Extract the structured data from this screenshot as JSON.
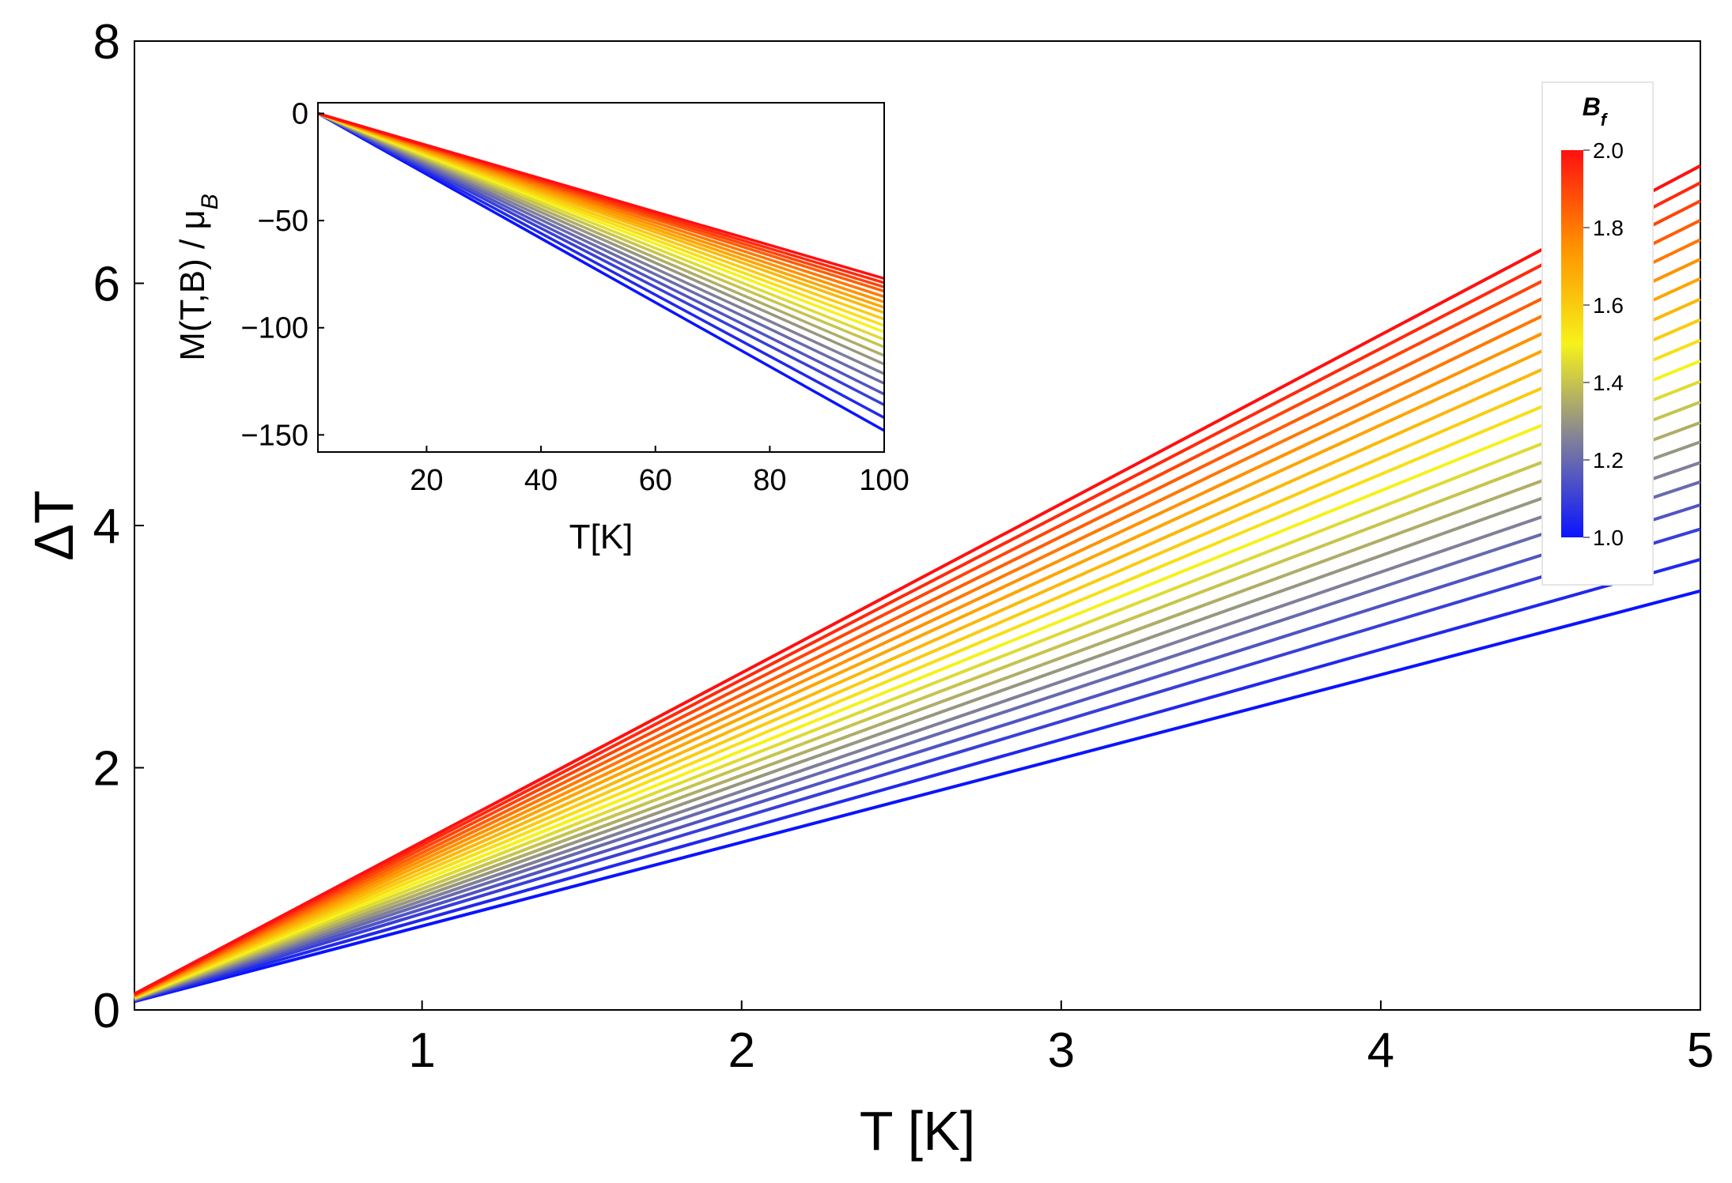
{
  "chart_data": [
    {
      "type": "line",
      "panel": "main",
      "xlabel": "T [K]",
      "ylabel": "ΔT",
      "xlim": [
        0.1,
        5
      ],
      "ylim": [
        0,
        8
      ],
      "x_ticks": [
        "1",
        "2",
        "3",
        "4",
        "5"
      ],
      "y_ticks": [
        "0",
        "2",
        "4",
        "6",
        "8"
      ],
      "x": [
        0.1,
        5
      ],
      "series": [
        {
          "name": "B_f = 1.00",
          "values": [
            0.07,
            3.46
          ]
        },
        {
          "name": "B_f = 1.05",
          "values": [
            0.075,
            3.72
          ]
        },
        {
          "name": "B_f = 1.10",
          "values": [
            0.08,
            3.97
          ]
        },
        {
          "name": "B_f = 1.15",
          "values": [
            0.082,
            4.17
          ]
        },
        {
          "name": "B_f = 1.20",
          "values": [
            0.085,
            4.36
          ]
        },
        {
          "name": "B_f = 1.25",
          "values": [
            0.088,
            4.52
          ]
        },
        {
          "name": "B_f = 1.30",
          "values": [
            0.09,
            4.69
          ]
        },
        {
          "name": "B_f = 1.35",
          "values": [
            0.093,
            4.85
          ]
        },
        {
          "name": "B_f = 1.40",
          "values": [
            0.096,
            5.02
          ]
        },
        {
          "name": "B_f = 1.45",
          "values": [
            0.099,
            5.19
          ]
        },
        {
          "name": "B_f = 1.50",
          "values": [
            0.102,
            5.36
          ]
        },
        {
          "name": "B_f = 1.55",
          "values": [
            0.105,
            5.53
          ]
        },
        {
          "name": "B_f = 1.60",
          "values": [
            0.108,
            5.7
          ]
        },
        {
          "name": "B_f = 1.65",
          "values": [
            0.111,
            5.87
          ]
        },
        {
          "name": "B_f = 1.70",
          "values": [
            0.114,
            6.04
          ]
        },
        {
          "name": "B_f = 1.75",
          "values": [
            0.117,
            6.2
          ]
        },
        {
          "name": "B_f = 1.80",
          "values": [
            0.12,
            6.36
          ]
        },
        {
          "name": "B_f = 1.85",
          "values": [
            0.123,
            6.52
          ]
        },
        {
          "name": "B_f = 1.90",
          "values": [
            0.126,
            6.68
          ]
        },
        {
          "name": "B_f = 1.95",
          "values": [
            0.129,
            6.83
          ]
        },
        {
          "name": "B_f = 2.00",
          "values": [
            0.132,
            6.97
          ]
        }
      ]
    },
    {
      "type": "line",
      "panel": "inset",
      "xlabel": "T[K]",
      "ylabel": "M(T,B) / μ",
      "ylabel_subscript": "B",
      "xlim": [
        1,
        100
      ],
      "ylim": [
        -158,
        5
      ],
      "x_ticks": [
        "20",
        "40",
        "60",
        "80",
        "100"
      ],
      "y_ticks": [
        "0",
        "−50",
        "−100",
        "−150"
      ],
      "x": [
        1,
        100
      ],
      "series": [
        {
          "name": "B_f = 1.00",
          "values": [
            0,
            -148
          ]
        },
        {
          "name": "B_f = 1.05",
          "values": [
            0,
            -142
          ]
        },
        {
          "name": "B_f = 1.10",
          "values": [
            0,
            -136
          ]
        },
        {
          "name": "B_f = 1.15",
          "values": [
            0,
            -131
          ]
        },
        {
          "name": "B_f = 1.20",
          "values": [
            0,
            -126
          ]
        },
        {
          "name": "B_f = 1.25",
          "values": [
            0,
            -121.5
          ]
        },
        {
          "name": "B_f = 1.30",
          "values": [
            0,
            -117
          ]
        },
        {
          "name": "B_f = 1.35",
          "values": [
            0,
            -113
          ]
        },
        {
          "name": "B_f = 1.40",
          "values": [
            0,
            -109
          ]
        },
        {
          "name": "B_f = 1.45",
          "values": [
            0,
            -105.5
          ]
        },
        {
          "name": "B_f = 1.50",
          "values": [
            0,
            -102
          ]
        },
        {
          "name": "B_f = 1.55",
          "values": [
            0,
            -99
          ]
        },
        {
          "name": "B_f = 1.60",
          "values": [
            0,
            -96
          ]
        },
        {
          "name": "B_f = 1.65",
          "values": [
            0,
            -93
          ]
        },
        {
          "name": "B_f = 1.70",
          "values": [
            0,
            -90.5
          ]
        },
        {
          "name": "B_f = 1.75",
          "values": [
            0,
            -88
          ]
        },
        {
          "name": "B_f = 1.80",
          "values": [
            0,
            -85.5
          ]
        },
        {
          "name": "B_f = 1.85",
          "values": [
            0,
            -83
          ]
        },
        {
          "name": "B_f = 1.90",
          "values": [
            0,
            -81
          ]
        },
        {
          "name": "B_f = 1.95",
          "values": [
            0,
            -79
          ]
        },
        {
          "name": "B_f = 2.00",
          "values": [
            0,
            -77
          ]
        }
      ]
    }
  ],
  "colorbar": {
    "title": "B",
    "title_subscript": "f",
    "min": 1.0,
    "max": 2.0,
    "ticks": [
      "1.0",
      "1.2",
      "1.4",
      "1.6",
      "1.8",
      "2.0"
    ],
    "tick_values": [
      1.0,
      1.2,
      1.4,
      1.6,
      1.8,
      2.0
    ],
    "gradient_colors": [
      "#0a14ff",
      "#7f7f9a",
      "#f6f21a",
      "#ff9200",
      "#ff1010"
    ]
  }
}
